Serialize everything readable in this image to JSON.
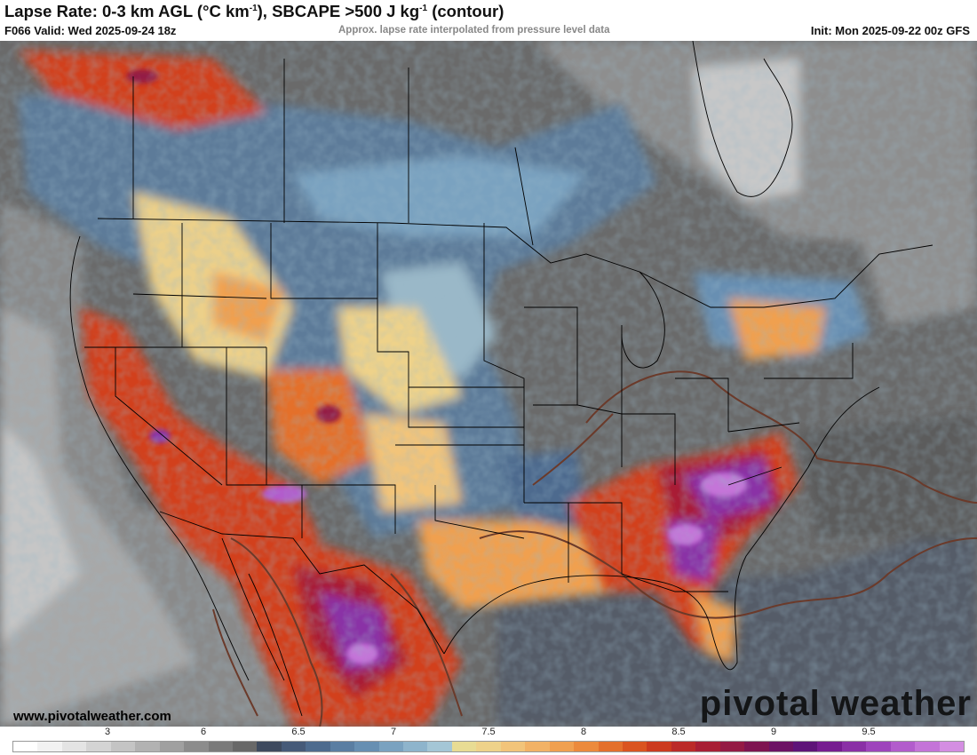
{
  "header": {
    "title_main": "Lapse Rate: 0-3 km AGL (°C km",
    "title_sup1": "-1",
    "title_mid": "), SBCAPE >500 J kg",
    "title_sup2": "-1",
    "title_end": " (contour)",
    "valid_text": "F066 Valid: Wed 2025-09-24 18z",
    "note_text": "Approx. lapse rate interpolated from pressure level data",
    "init_text": "Init: Mon 2025-09-22 00z GFS"
  },
  "footer": {
    "url": "www.pivotalweather.com",
    "watermark": "pivotal weather"
  },
  "legend": {
    "tick_labels": [
      "3",
      "6",
      "6.5",
      "7",
      "7.5",
      "8",
      "8.5",
      "9",
      "9.5"
    ],
    "colors": [
      "#ffffff",
      "#f2f2f2",
      "#e4e4e4",
      "#d4d4d4",
      "#c4c4c4",
      "#b2b2b2",
      "#a0a0a0",
      "#8c8c8c",
      "#7a7a7a",
      "#686868",
      "#3e4a5e",
      "#465a78",
      "#4e6b8e",
      "#5a7ea2",
      "#678fb2",
      "#7aa2c0",
      "#8eb4cc",
      "#a4c6d6",
      "#e8dc94",
      "#eed28a",
      "#f2c47a",
      "#f2b266",
      "#f0a050",
      "#ec8a3c",
      "#e4702c",
      "#da5420",
      "#cc3a1e",
      "#bb2a28",
      "#a81e34",
      "#941a44",
      "#7e1450",
      "#6c1264",
      "#5e1478",
      "#761c90",
      "#8a30a6",
      "#9e44bc",
      "#b25ccc",
      "#c474d8",
      "#d48ee2"
    ]
  },
  "map": {
    "region": "Contiguous United States, southern Canada, northern Mexico",
    "colors": {
      "background": "#6a6a6a",
      "ocean_dark": "#4f5866",
      "land_gray": "#707070",
      "cold_gray": "#b8b8b8",
      "boundary": "#000000",
      "cape_contour": "#6b3a2a",
      "blue": "#5c7c9c",
      "light_blue": "#9ab8c8",
      "yellow": "#ecd08a",
      "orange": "#f0a050",
      "red": "#d2401c",
      "crimson": "#a81e34",
      "purple": "#8a30a6",
      "violet": "#b25ccc"
    }
  }
}
